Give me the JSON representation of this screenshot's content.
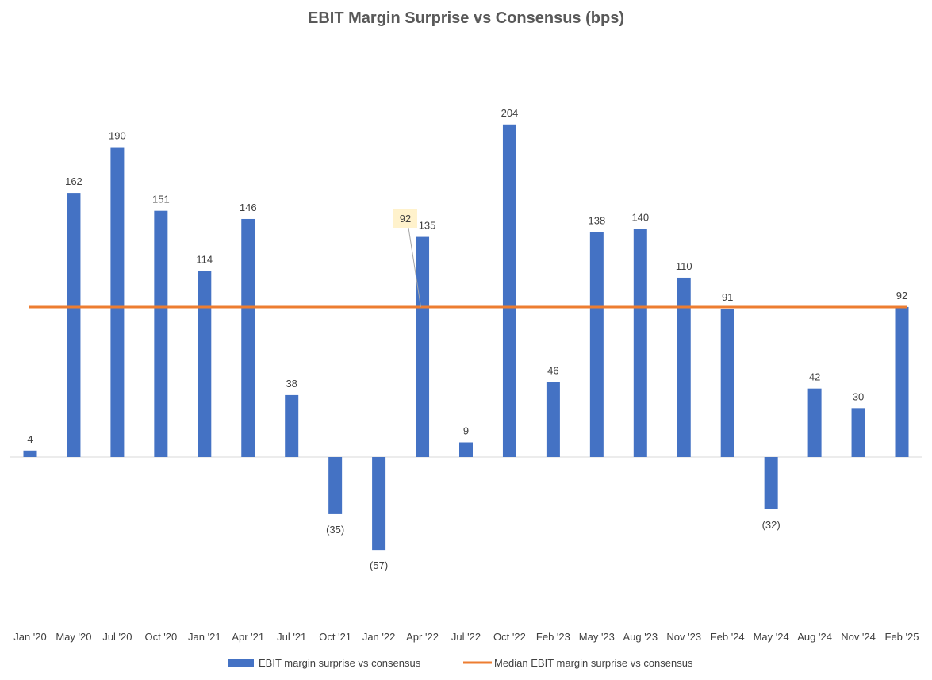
{
  "chart_data": {
    "type": "bar",
    "title": "EBIT Margin Surprise vs Consensus (bps)",
    "categories": [
      "Jan '20",
      "May '20",
      "Jul '20",
      "Oct '20",
      "Jan '21",
      "Apr '21",
      "Jul '21",
      "Oct '21",
      "Jan '22",
      "Apr '22",
      "Jul '22",
      "Oct '22",
      "Feb '23",
      "May '23",
      "Aug '23",
      "Nov '23",
      "Feb '24",
      "May '24",
      "Aug '24",
      "Nov '24",
      "Feb '25"
    ],
    "series": [
      {
        "name": "EBIT margin surprise vs consensus",
        "type": "bar",
        "color": "#4472C4",
        "values": [
          4,
          162,
          190,
          151,
          114,
          146,
          38,
          -35,
          -57,
          135,
          9,
          204,
          46,
          138,
          140,
          110,
          91,
          -32,
          42,
          30,
          92
        ],
        "labels": [
          "4",
          "162",
          "190",
          "151",
          "114",
          "146",
          "38",
          "(35)",
          "(57)",
          "135",
          "9",
          "204",
          "46",
          "138",
          "140",
          "110",
          "91",
          "(32)",
          "42",
          "30",
          "92"
        ]
      },
      {
        "name": "Median EBIT margin surprise vs consensus",
        "type": "line",
        "color": "#ED7D31",
        "value": 92
      }
    ],
    "median_callout": "92",
    "ylim": [
      -100,
      260
    ],
    "grid": false,
    "legend_position": "bottom"
  }
}
